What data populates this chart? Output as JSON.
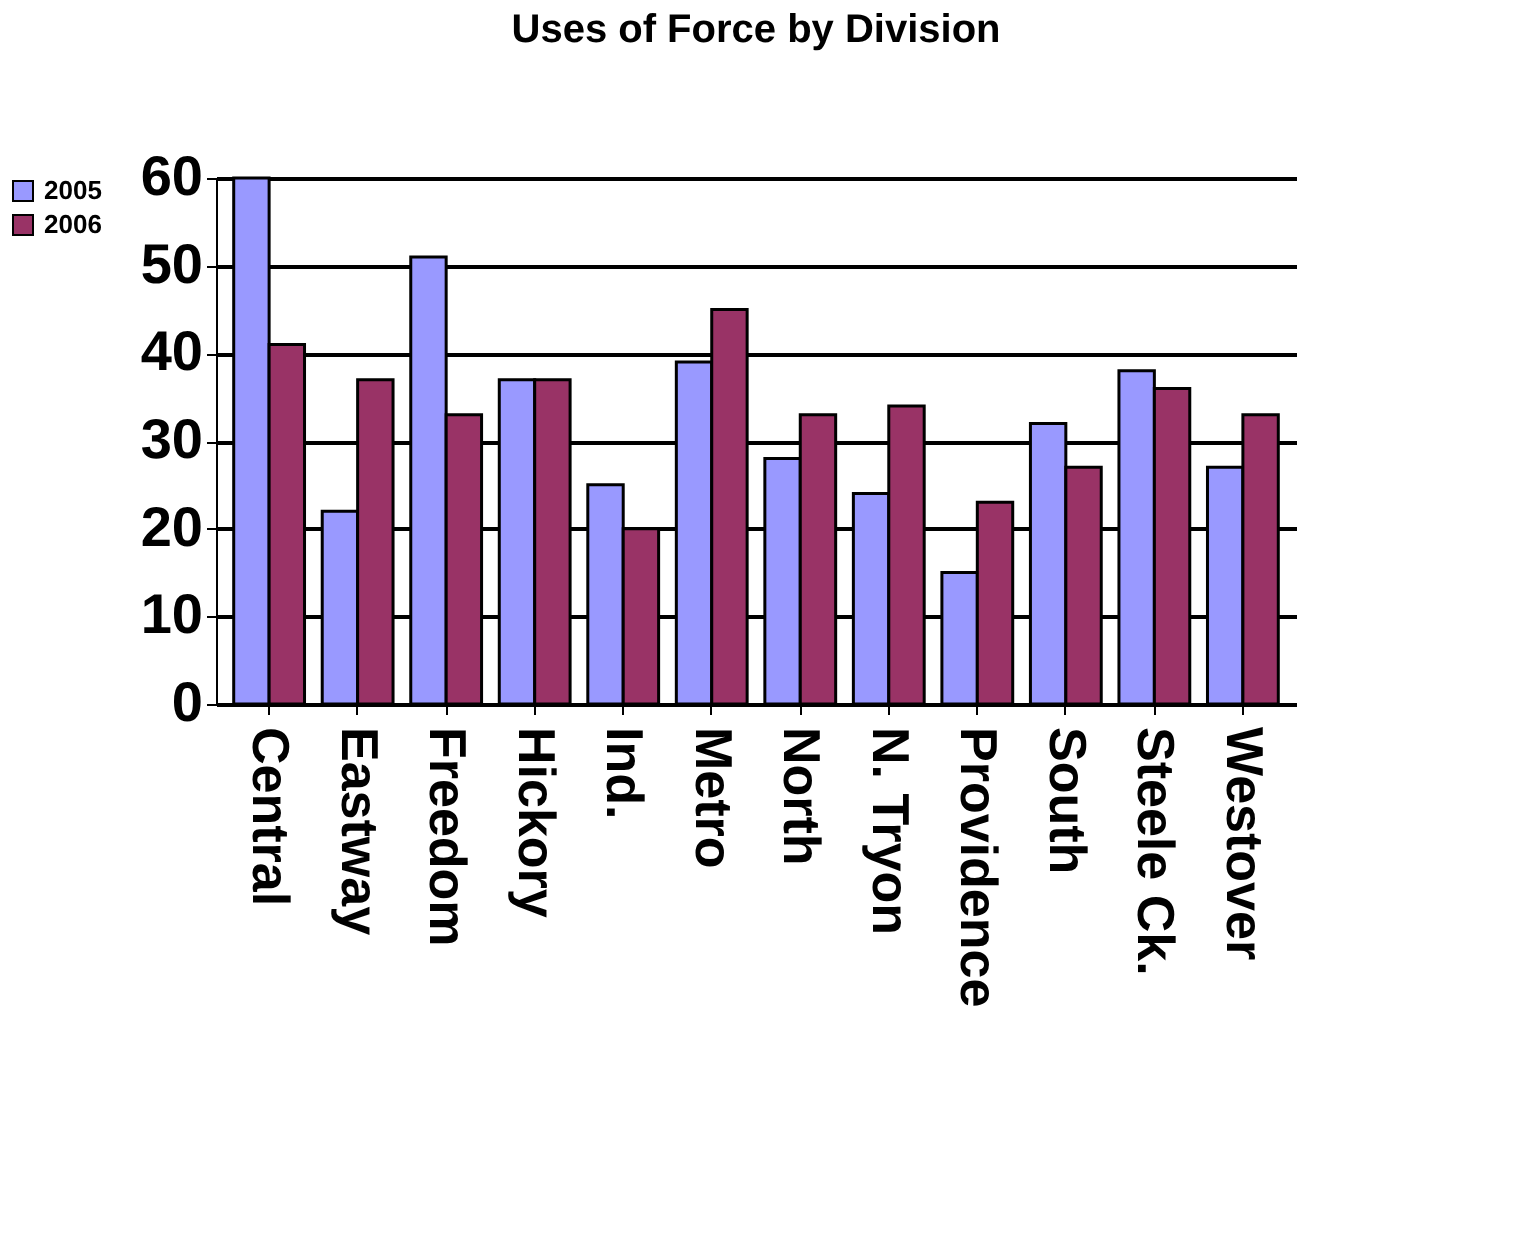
{
  "chart_data": {
    "type": "bar",
    "title": "Uses of Force by Division",
    "categories": [
      "Central",
      "Eastway",
      "Freedom",
      "Hickory",
      "Ind.",
      "Metro",
      "North",
      "N. Tryon",
      "Providence",
      "South",
      "Steele Ck.",
      "Westover"
    ],
    "series": [
      {
        "name": "2005",
        "color": "#9999ff",
        "values": [
          60,
          22,
          51,
          37,
          25,
          39,
          28,
          24,
          15,
          32,
          38,
          27
        ]
      },
      {
        "name": "2006",
        "color": "#993366",
        "values": [
          41,
          37,
          33,
          37,
          20,
          45,
          33,
          34,
          23,
          27,
          36,
          33
        ]
      }
    ],
    "ylim": [
      0,
      60
    ],
    "yticks": [
      0,
      10,
      20,
      30,
      40,
      50,
      60
    ],
    "grid": "y",
    "legend": "left"
  }
}
